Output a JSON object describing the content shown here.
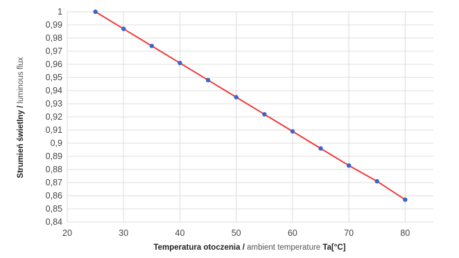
{
  "chart_data": {
    "type": "line",
    "xlabel": {
      "bold_part": "Temperatura otoczenia / ",
      "light_part": "ambient temperature ",
      "bold_tail": "Ta[°C]"
    },
    "ylabel": {
      "bold_part": "Strumień świetlny / ",
      "light_part": "luminous flux"
    },
    "xlim": [
      20,
      85
    ],
    "ylim": [
      0.84,
      1.0
    ],
    "x_ticks": [
      "20",
      "30",
      "40",
      "50",
      "60",
      "70",
      "80"
    ],
    "x_tick_values": [
      20,
      30,
      40,
      50,
      60,
      70,
      80
    ],
    "y_ticks": [
      "0,84",
      "0,85",
      "0,86",
      "0,87",
      "0,88",
      "0,89",
      "0,9",
      "0,91",
      "0,92",
      "0,93",
      "0,94",
      "0,95",
      "0,96",
      "0,97",
      "0,98",
      "0,99",
      "1"
    ],
    "y_tick_values": [
      0.84,
      0.85,
      0.86,
      0.87,
      0.88,
      0.89,
      0.9,
      0.91,
      0.92,
      0.93,
      0.94,
      0.95,
      0.96,
      0.97,
      0.98,
      0.99,
      1.0
    ],
    "grid": true,
    "series": [
      {
        "line_color": "#f03a3a",
        "marker_color": "#3a66c8",
        "x": [
          25,
          30,
          35,
          40,
          45,
          50,
          55,
          60,
          65,
          70,
          75,
          80
        ],
        "y": [
          1.0,
          0.987,
          0.974,
          0.961,
          0.948,
          0.935,
          0.922,
          0.909,
          0.896,
          0.883,
          0.871,
          0.857
        ]
      }
    ]
  }
}
